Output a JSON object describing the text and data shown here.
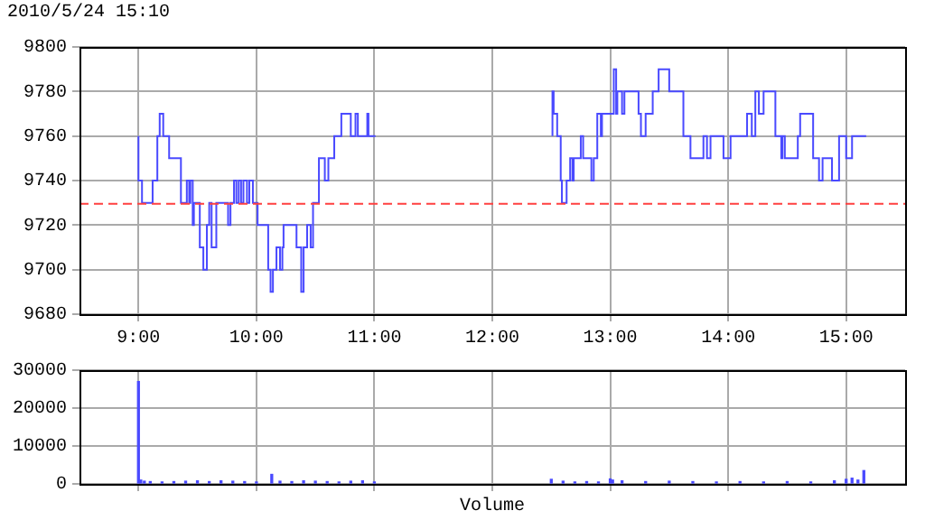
{
  "chart_data": [
    {
      "type": "step",
      "title": "2010/5/24 15:10",
      "xlim": [
        8.5,
        15.5
      ],
      "xticks": [
        {
          "value": 9,
          "label": "9:00"
        },
        {
          "value": 10,
          "label": "10:00"
        },
        {
          "value": 11,
          "label": "11:00"
        },
        {
          "value": 12,
          "label": "12:00"
        },
        {
          "value": 13,
          "label": "13:00"
        },
        {
          "value": 14,
          "label": "14:00"
        },
        {
          "value": 15,
          "label": "15:00"
        }
      ],
      "ylim": [
        9680,
        9800
      ],
      "yticks": [
        9680,
        9700,
        9720,
        9740,
        9760,
        9780,
        9800
      ],
      "grid": true,
      "ref_lines": [
        {
          "axis": "y",
          "value": 9730,
          "color": "#ff4040",
          "line_style": "dashed"
        }
      ],
      "series": [
        {
          "color": "#4a4aff",
          "x": [
            9,
            9.03,
            9.12,
            9.16,
            9.18,
            9.21,
            9.26,
            9.36,
            9.41,
            9.43,
            9.44,
            9.46,
            9.47,
            9.52,
            9.55,
            9.58,
            9.6,
            9.62,
            9.66,
            9.76,
            9.78,
            9.81,
            9.83,
            9.85,
            9.87,
            9.89,
            9.92,
            9.94,
            9.97,
            10.01,
            10.1,
            10.12,
            10.14,
            10.17,
            10.2,
            10.22,
            10.23,
            10.34,
            10.38,
            10.4,
            10.43,
            10.46,
            10.48,
            10.53,
            10.58,
            10.61,
            10.66,
            10.72,
            10.8,
            10.84,
            10.86,
            10.94,
            10.95,
            11.01,
            11.5,
            12.51,
            12.52,
            12.55,
            12.58,
            12.59,
            12.63,
            12.66,
            12.68,
            12.69,
            12.75,
            12.77,
            12.84,
            12.86,
            12.89,
            12.92,
            12.93,
            13.03,
            13.05,
            13.06,
            13.1,
            13.12,
            13.24,
            13.26,
            13.3,
            13.36,
            13.41,
            13.5,
            13.62,
            13.68,
            13.79,
            13.82,
            13.85,
            13.96,
            14.02,
            14.16,
            14.2,
            14.23,
            14.26,
            14.3,
            14.4,
            14.45,
            14.46,
            14.48,
            14.59,
            14.61,
            14.72,
            14.77,
            14.8,
            14.88,
            14.94,
            15,
            15.05,
            15.17
          ],
          "values": [
            9760,
            9740,
            9730,
            9740,
            9760,
            9770,
            9760,
            9750,
            9730,
            9740,
            9730,
            9740,
            9720,
            9730,
            9710,
            9700,
            9720,
            9730,
            9710,
            9730,
            9720,
            9730,
            9740,
            9730,
            9740,
            9730,
            9740,
            9730,
            9740,
            9730,
            9720,
            9700,
            9690,
            9700,
            9710,
            9700,
            9710,
            9720,
            9710,
            9690,
            9710,
            9720,
            9710,
            9730,
            9750,
            9740,
            9750,
            9760,
            9770,
            9760,
            9770,
            9760,
            9770,
            9760,
            null,
            9760,
            9780,
            9770,
            9760,
            9740,
            9730,
            9740,
            9750,
            9740,
            9750,
            9760,
            9750,
            9740,
            9750,
            9770,
            9760,
            9770,
            9790,
            9770,
            9780,
            9770,
            9780,
            9770,
            9760,
            9770,
            9780,
            9790,
            9780,
            9760,
            9750,
            9760,
            9750,
            9760,
            9750,
            9760,
            9770,
            9760,
            9780,
            9770,
            9780,
            9760,
            9750,
            9760,
            9750,
            9760,
            9770,
            9750,
            9740,
            9750,
            9740,
            9760,
            9750,
            9760
          ]
        }
      ]
    },
    {
      "type": "bar",
      "xlabel": "Volume",
      "xlim": [
        8.5,
        15.5
      ],
      "xticks": [
        {
          "value": 9,
          "label": null
        },
        {
          "value": 10,
          "label": null
        },
        {
          "value": 11,
          "label": null
        },
        {
          "value": 12,
          "label": null
        },
        {
          "value": 13,
          "label": null
        },
        {
          "value": 14,
          "label": null
        },
        {
          "value": 15,
          "label": null
        }
      ],
      "ylim": [
        0,
        30000
      ],
      "yticks": [
        0,
        10000,
        20000,
        30000
      ],
      "grid": true,
      "tick_labels": "y",
      "series": [
        {
          "color": "#4a4aff",
          "x": [
            9,
            9.02,
            9.05,
            9.1,
            9.2,
            9.3,
            9.4,
            9.5,
            9.6,
            9.7,
            9.8,
            9.9,
            10,
            10.13,
            10.2,
            10.3,
            10.4,
            10.5,
            10.6,
            10.7,
            10.8,
            10.9,
            11,
            12.5,
            12.6,
            12.7,
            12.8,
            12.9,
            13,
            13.02,
            13.1,
            13.3,
            13.5,
            13.7,
            13.9,
            14.1,
            14.3,
            14.5,
            14.7,
            14.9,
            15,
            15.05,
            15.1,
            15.15
          ],
          "values": [
            27000,
            1000,
            700,
            600,
            500,
            600,
            700,
            800,
            600,
            800,
            700,
            600,
            500,
            2500,
            700,
            600,
            800,
            700,
            600,
            500,
            700,
            800,
            500,
            1200,
            700,
            500,
            600,
            500,
            1300,
            1000,
            800,
            600,
            700,
            600,
            500,
            600,
            500,
            600,
            500,
            800,
            1200,
            1500,
            1000,
            3500
          ]
        }
      ]
    }
  ]
}
